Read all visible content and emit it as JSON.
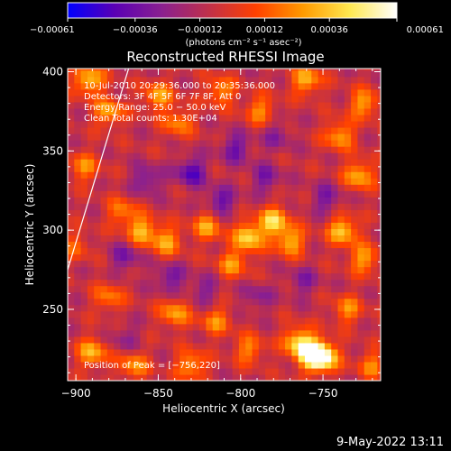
{
  "footer_date": "9-May-2022 13:11",
  "chart_data": {
    "type": "heatmap",
    "title": "Reconstructed RHESSI Image",
    "xlabel": "Heliocentric X (arcsec)",
    "ylabel": "Heliocentric Y (arcsec)",
    "xlim": [
      -905,
      -715
    ],
    "ylim": [
      205,
      402
    ],
    "xticks": [
      {
        "value": -900,
        "label": "−900"
      },
      {
        "value": -850,
        "label": "−850"
      },
      {
        "value": -800,
        "label": "−800"
      },
      {
        "value": -750,
        "label": "−750"
      }
    ],
    "yticks": [
      {
        "value": 250,
        "label": "250"
      },
      {
        "value": 300,
        "label": "300"
      },
      {
        "value": 350,
        "label": "350"
      },
      {
        "value": 400,
        "label": "400"
      }
    ],
    "colorbar": {
      "min": -0.00061,
      "max": 0.00061,
      "unit": "(photons cm⁻² s⁻¹ asec⁻²)",
      "ticks": [
        {
          "value": -0.00061,
          "label": "−0.00061"
        },
        {
          "value": -0.00036,
          "label": "−0.00036"
        },
        {
          "value": -0.00012,
          "label": "−0.00012"
        },
        {
          "value": 0.00012,
          "label": "0.00012"
        },
        {
          "value": 0.00036,
          "label": "0.00036"
        },
        {
          "value": 0.00061,
          "label": "0.00061"
        }
      ],
      "colors": [
        "#0000ff",
        "#5a00b4",
        "#8a2090",
        "#c0304a",
        "#ff4000",
        "#ff9a00",
        "#ffe850",
        "#ffffff"
      ]
    },
    "info_lines": [
      "10-Jul-2010 20:29:36.000 to 20:35:36.000",
      "Detectors: 3F 4F 5F 6F 7F 8F, Att 0",
      "Energy Range: 25.0 − 50.0 keV",
      "Clean   Total counts: 1.30E+04"
    ],
    "peak_text": "Position of Peak = [−756,220]",
    "peak": [
      -756,
      220
    ],
    "limb_line": [
      [
        -905,
        275
      ],
      [
        -868,
        402
      ]
    ],
    "hot_spots": [
      {
        "x": -750,
        "y": 220,
        "value": 0.00061
      },
      {
        "x": -757,
        "y": 222,
        "value": 0.00058
      },
      {
        "x": -765,
        "y": 230,
        "value": 0.00045
      },
      {
        "x": -890,
        "y": 223,
        "value": 0.0004
      },
      {
        "x": -865,
        "y": 215,
        "value": 0.00033
      },
      {
        "x": -795,
        "y": 296,
        "value": 0.0005
      },
      {
        "x": -780,
        "y": 306,
        "value": 0.00048
      },
      {
        "x": -770,
        "y": 293,
        "value": 0.0004
      },
      {
        "x": -820,
        "y": 303,
        "value": 0.00036
      },
      {
        "x": -805,
        "y": 279,
        "value": 0.00032
      },
      {
        "x": -860,
        "y": 300,
        "value": 0.0004
      },
      {
        "x": -845,
        "y": 293,
        "value": 0.00036
      },
      {
        "x": -872,
        "y": 312,
        "value": 0.00028
      },
      {
        "x": -738,
        "y": 300,
        "value": 0.00045
      },
      {
        "x": -725,
        "y": 282,
        "value": 0.00036
      },
      {
        "x": -728,
        "y": 335,
        "value": 0.0004
      },
      {
        "x": -740,
        "y": 360,
        "value": 0.00036
      },
      {
        "x": -760,
        "y": 395,
        "value": 0.0004
      },
      {
        "x": -725,
        "y": 380,
        "value": 0.00036
      },
      {
        "x": -788,
        "y": 376,
        "value": 0.0003
      },
      {
        "x": -812,
        "y": 388,
        "value": 0.00032
      },
      {
        "x": -838,
        "y": 368,
        "value": 0.0003
      },
      {
        "x": -850,
        "y": 385,
        "value": 0.00036
      },
      {
        "x": -880,
        "y": 375,
        "value": 0.00036
      },
      {
        "x": -895,
        "y": 340,
        "value": 0.0003
      },
      {
        "x": -892,
        "y": 395,
        "value": 0.00045
      },
      {
        "x": -840,
        "y": 248,
        "value": 0.00036
      },
      {
        "x": -815,
        "y": 243,
        "value": 0.0003
      },
      {
        "x": -880,
        "y": 258,
        "value": 0.00028
      },
      {
        "x": -735,
        "y": 250,
        "value": 0.0003
      },
      {
        "x": -720,
        "y": 215,
        "value": 0.00028
      },
      {
        "x": -795,
        "y": 225,
        "value": 0.0003
      },
      {
        "x": -830,
        "y": 215,
        "value": 0.00036
      },
      {
        "x": -900,
        "y": 290,
        "value": 0.0002
      }
    ],
    "cold_spots": [
      {
        "x": -830,
        "y": 337,
        "value": -0.00036
      },
      {
        "x": -812,
        "y": 318,
        "value": -0.0003
      },
      {
        "x": -803,
        "y": 352,
        "value": -0.00028
      },
      {
        "x": -785,
        "y": 333,
        "value": -0.00024
      },
      {
        "x": -857,
        "y": 332,
        "value": -0.00026
      },
      {
        "x": -843,
        "y": 270,
        "value": -0.00026
      },
      {
        "x": -870,
        "y": 283,
        "value": -0.00024
      },
      {
        "x": -822,
        "y": 262,
        "value": -0.0002
      },
      {
        "x": -748,
        "y": 320,
        "value": -0.00024
      },
      {
        "x": -762,
        "y": 268,
        "value": -0.0002
      },
      {
        "x": -790,
        "y": 258,
        "value": -0.00018
      },
      {
        "x": -778,
        "y": 360,
        "value": -0.00018
      },
      {
        "x": -870,
        "y": 232,
        "value": -0.00016
      }
    ]
  }
}
